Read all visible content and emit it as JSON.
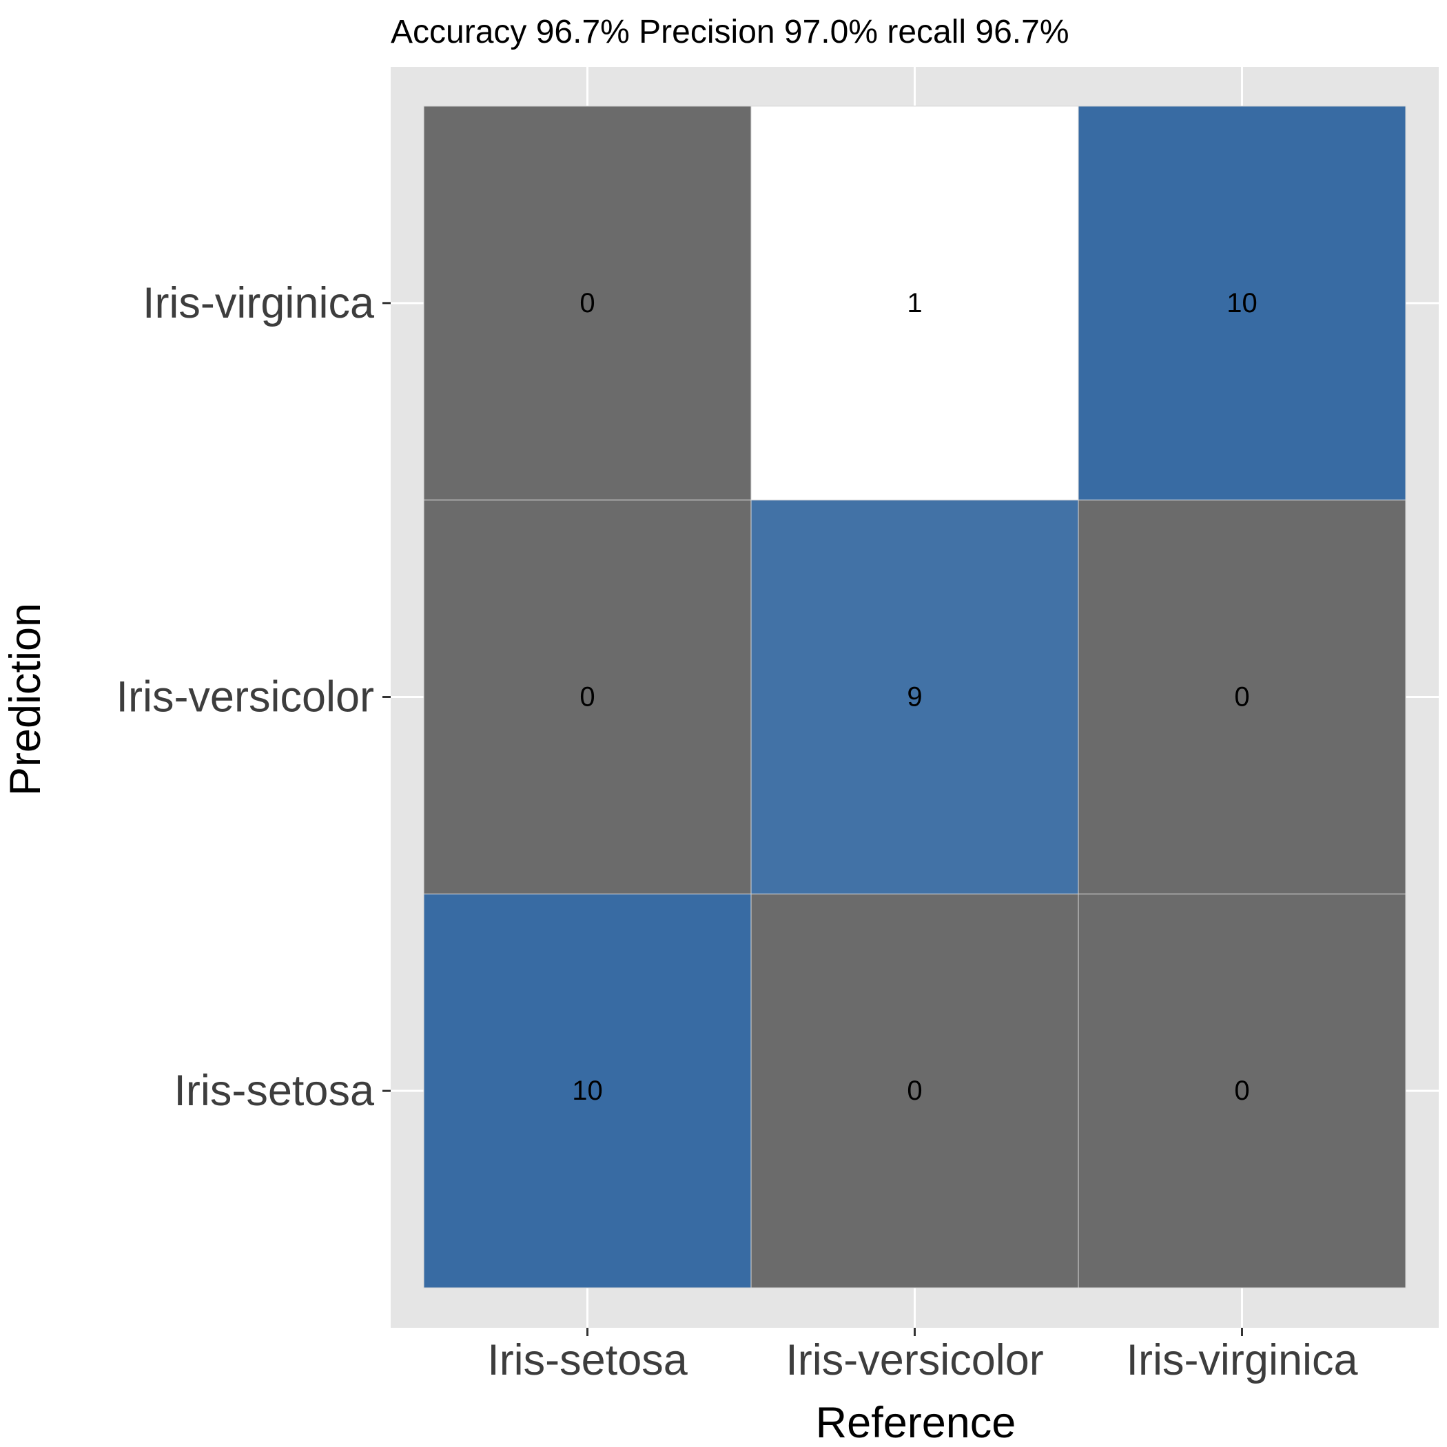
{
  "chart_data": {
    "type": "heatmap",
    "title": "Accuracy 96.7% Precision 97.0% recall 96.7%",
    "xlabel": "Reference",
    "ylabel": "Prediction",
    "x_categories": [
      "Iris-setosa",
      "Iris-versicolor",
      "Iris-virginica"
    ],
    "y_categories": [
      "Iris-setosa",
      "Iris-versicolor",
      "Iris-virginica"
    ],
    "matrix": [
      [
        10,
        0,
        0
      ],
      [
        0,
        9,
        0
      ],
      [
        0,
        1,
        10
      ]
    ],
    "grid": true,
    "colors": {
      "panel_background": "#e5e5e5",
      "gridline": "#ffffff",
      "correct_high": "#386ba3",
      "correct_mid": "#4272a6",
      "off_diagonal_zero": "#6b6b6b",
      "off_diagonal_error": "#ffffff",
      "tile_border": "#d9d9d9"
    }
  }
}
